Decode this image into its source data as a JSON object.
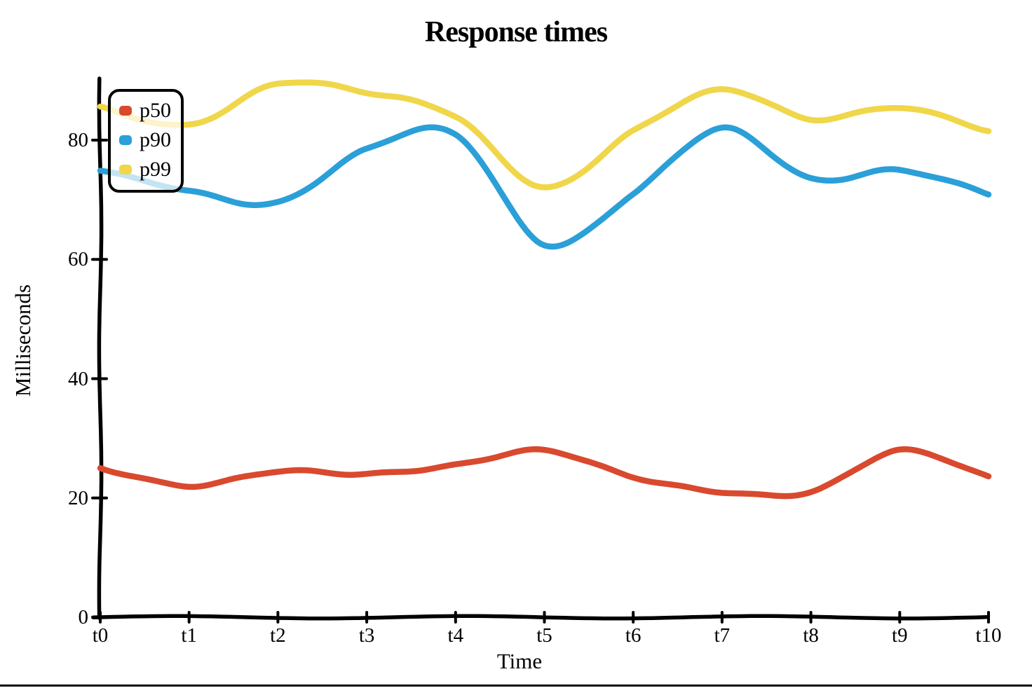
{
  "chart_data": {
    "type": "line",
    "title": "Response times",
    "xlabel": "Time",
    "ylabel": "Milliseconds",
    "style": "hand-drawn-xkcd",
    "grid": false,
    "legend_position": "upper-left",
    "x_categories": [
      "t0",
      "t1",
      "t2",
      "t3",
      "t4",
      "t5",
      "t6",
      "t7",
      "t8",
      "t9",
      "t10"
    ],
    "y_ticks": [
      0,
      20,
      40,
      60,
      80
    ],
    "ylim": [
      0,
      90
    ],
    "series": [
      {
        "name": "p50",
        "color": "#d9492e",
        "values": [
          25,
          22,
          24.5,
          24,
          25.5,
          28,
          23.5,
          21,
          21,
          28,
          23.5
        ]
      },
      {
        "name": "p90",
        "color": "#2b9fd8",
        "values": [
          75,
          71.5,
          69.5,
          78.5,
          81,
          62.5,
          71,
          82,
          73.5,
          75,
          71
        ]
      },
      {
        "name": "p99",
        "color": "#f0d64a",
        "values": [
          85.5,
          82.5,
          89.5,
          88,
          84,
          72,
          81.5,
          88.5,
          83.5,
          85.5,
          81.5
        ]
      }
    ],
    "axis_color": "#000000",
    "background_color": "#ffffff"
  }
}
